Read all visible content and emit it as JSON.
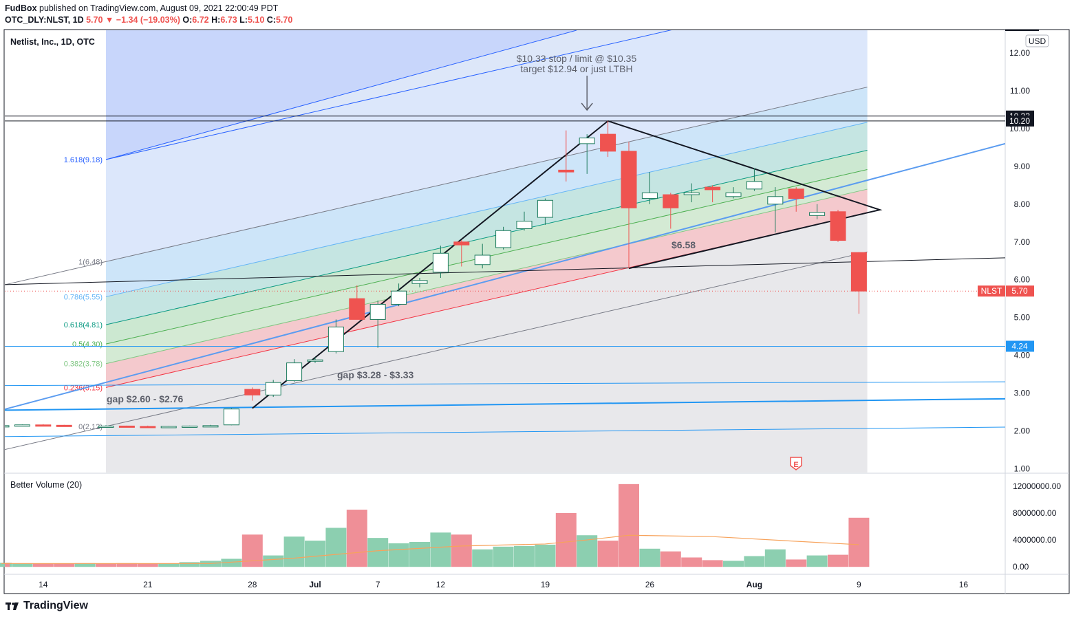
{
  "header": {
    "user": "FudBox",
    "published": " published on TradingView.com, August 09, 2021 22:00:49 PDT",
    "symbol": "OTC_DLY:NLST, 1D",
    "last": "5.70",
    "arrow": "▼",
    "change": "−1.34 (−19.03%)",
    "o_label": "O:",
    "o_value": "6.72",
    "h_label": "H:",
    "h_value": "6.73",
    "l_label": "L:",
    "l_value": "5.10",
    "c_label": "C:",
    "c_value": "5.70"
  },
  "footer": {
    "brand": "TradingView"
  },
  "colors": {
    "up": "#ffffff",
    "up_border": "#1b7a5c",
    "down": "#ef5350",
    "vol_up": "#8ccfb0",
    "vol_down": "#ef8f97",
    "blue": "#2196f3"
  },
  "chart_data": [
    {
      "type": "candlestick",
      "title": "Netlist, Inc., 1D, OTC",
      "currency": "USD",
      "ylim": [
        0.9,
        12.6
      ],
      "y_ticks": [
        1,
        2,
        3,
        4,
        5,
        6,
        7,
        8,
        9,
        10,
        11,
        12
      ],
      "x_labels": [
        {
          "label": "14",
          "x": -3
        },
        {
          "label": "21",
          "x": 2
        },
        {
          "label": "28",
          "x": 7
        },
        {
          "label": "Jul",
          "x": 10
        },
        {
          "label": "7",
          "x": 13
        },
        {
          "label": "12",
          "x": 16
        },
        {
          "label": "19",
          "x": 21
        },
        {
          "label": "26",
          "x": 26
        },
        {
          "label": "Aug",
          "x": 31
        },
        {
          "label": "9",
          "x": 36
        },
        {
          "label": "16",
          "x": 41
        }
      ],
      "candles": [
        {
          "x": -5,
          "o": 2.13,
          "h": 2.15,
          "l": 2.1,
          "c": 2.14
        },
        {
          "x": -4,
          "o": 2.14,
          "h": 2.17,
          "l": 2.12,
          "c": 2.16
        },
        {
          "x": -3,
          "o": 2.16,
          "h": 2.18,
          "l": 2.13,
          "c": 2.15
        },
        {
          "x": -2,
          "o": 2.15,
          "h": 2.16,
          "l": 2.11,
          "c": 2.12
        },
        {
          "x": 0,
          "o": 2.12,
          "h": 2.15,
          "l": 2.09,
          "c": 2.13
        },
        {
          "x": 1,
          "o": 2.13,
          "h": 2.14,
          "l": 2.1,
          "c": 2.11
        },
        {
          "x": 2,
          "o": 2.12,
          "h": 2.14,
          "l": 2.09,
          "c": 2.1
        },
        {
          "x": 3,
          "o": 2.1,
          "h": 2.13,
          "l": 2.08,
          "c": 2.12
        },
        {
          "x": 4,
          "o": 2.12,
          "h": 2.14,
          "l": 2.1,
          "c": 2.13
        },
        {
          "x": 5,
          "o": 2.13,
          "h": 2.16,
          "l": 2.11,
          "c": 2.14
        },
        {
          "x": 6,
          "o": 2.16,
          "h": 2.6,
          "l": 2.15,
          "c": 2.58
        },
        {
          "x": 7,
          "o": 3.1,
          "h": 3.15,
          "l": 2.8,
          "c": 2.95
        },
        {
          "x": 8,
          "o": 2.95,
          "h": 3.35,
          "l": 2.9,
          "c": 3.28
        },
        {
          "x": 9,
          "o": 3.33,
          "h": 3.9,
          "l": 3.3,
          "c": 3.8
        },
        {
          "x": 10,
          "o": 3.85,
          "h": 3.95,
          "l": 3.8,
          "c": 3.88
        },
        {
          "x": 11,
          "o": 4.1,
          "h": 4.95,
          "l": 4.05,
          "c": 4.75
        },
        {
          "x": 12,
          "o": 5.5,
          "h": 5.85,
          "l": 4.95,
          "c": 4.95
        },
        {
          "x": 13,
          "o": 4.95,
          "h": 5.45,
          "l": 4.2,
          "c": 5.35
        },
        {
          "x": 14,
          "o": 5.35,
          "h": 5.9,
          "l": 5.3,
          "c": 5.7
        },
        {
          "x": 15,
          "o": 5.9,
          "h": 6.05,
          "l": 5.8,
          "c": 5.98
        },
        {
          "x": 16,
          "o": 6.2,
          "h": 6.9,
          "l": 6.05,
          "c": 6.7
        },
        {
          "x": 17,
          "o": 7.0,
          "h": 7.05,
          "l": 6.35,
          "c": 6.92
        },
        {
          "x": 18,
          "o": 6.4,
          "h": 6.95,
          "l": 6.3,
          "c": 6.65
        },
        {
          "x": 19,
          "o": 6.85,
          "h": 7.4,
          "l": 6.8,
          "c": 7.3
        },
        {
          "x": 20,
          "o": 7.35,
          "h": 7.8,
          "l": 7.3,
          "c": 7.55
        },
        {
          "x": 21,
          "o": 7.65,
          "h": 8.15,
          "l": 7.45,
          "c": 8.1
        },
        {
          "x": 22,
          "o": 8.9,
          "h": 9.95,
          "l": 8.6,
          "c": 8.85
        },
        {
          "x": 23,
          "o": 9.6,
          "h": 9.85,
          "l": 8.8,
          "c": 9.75
        },
        {
          "x": 24,
          "o": 9.85,
          "h": 10.2,
          "l": 9.25,
          "c": 9.4
        },
        {
          "x": 25,
          "o": 9.4,
          "h": 9.65,
          "l": 6.3,
          "c": 7.9
        },
        {
          "x": 26,
          "o": 8.15,
          "h": 8.85,
          "l": 8.0,
          "c": 8.3
        },
        {
          "x": 27,
          "o": 8.25,
          "h": 8.3,
          "l": 7.35,
          "c": 7.9
        },
        {
          "x": 28,
          "o": 8.25,
          "h": 8.55,
          "l": 8.05,
          "c": 8.3
        },
        {
          "x": 29,
          "o": 8.45,
          "h": 8.5,
          "l": 8.05,
          "c": 8.38
        },
        {
          "x": 30,
          "o": 8.2,
          "h": 8.45,
          "l": 8.15,
          "c": 8.3
        },
        {
          "x": 31,
          "o": 8.4,
          "h": 8.95,
          "l": 8.35,
          "c": 8.6
        },
        {
          "x": 32,
          "o": 8.0,
          "h": 8.45,
          "l": 7.25,
          "c": 8.2
        },
        {
          "x": 33,
          "o": 8.4,
          "h": 8.45,
          "l": 7.8,
          "c": 8.15
        },
        {
          "x": 34,
          "o": 7.7,
          "h": 8.0,
          "l": 7.6,
          "c": 7.78
        },
        {
          "x": 35,
          "o": 7.8,
          "h": 7.85,
          "l": 7.0,
          "c": 7.04
        },
        {
          "x": 36,
          "o": 6.72,
          "h": 6.73,
          "l": 5.1,
          "c": 5.7
        }
      ],
      "fib_levels": [
        {
          "label": "0(2.12)",
          "value": 2.12,
          "color": "#787b86"
        },
        {
          "label": "0.236(3.15)",
          "value": 3.15,
          "color": "#f23645"
        },
        {
          "label": "0.382(3.78)",
          "value": 3.78,
          "color": "#81c784"
        },
        {
          "label": "0.5(4.30)",
          "value": 4.3,
          "color": "#4caf50"
        },
        {
          "label": "0.618(4.81)",
          "value": 4.81,
          "color": "#089981"
        },
        {
          "label": "0.786(5.55)",
          "value": 5.55,
          "color": "#64b5f6"
        },
        {
          "label": "1(6.48)",
          "value": 6.48,
          "color": "#787b86"
        },
        {
          "label": "1.618(9.18)",
          "value": 9.18,
          "color": "#2962ff"
        }
      ],
      "annotations": {
        "stop_text_1": "$10.33 stop / limit @ $10.35",
        "stop_text_2": "target $12.94 or just LTBH",
        "gap1": "gap $2.60 - $2.76",
        "gap2": "gap $3.28 - $3.33",
        "support": "$6.58",
        "earnings": "E"
      },
      "price_badges": [
        {
          "text": "10.33",
          "value": 10.33,
          "bg": "#131722"
        },
        {
          "text": "10.20",
          "value": 10.2,
          "bg": "#131722"
        },
        {
          "text": "4.24",
          "value": 4.24,
          "bg": "#2196f3"
        },
        {
          "text": "5.70",
          "value": 5.7,
          "bg": "#ef5350"
        }
      ],
      "last_symbol": "NLST"
    },
    {
      "type": "bar",
      "title": "Better Volume (20)",
      "ylim": [
        -1000000,
        13000000
      ],
      "y_tick_labels": [
        {
          "label": "12000000.00",
          "value": 12000000
        },
        {
          "label": "8000000.00",
          "value": 8000000
        },
        {
          "label": "4000000.00",
          "value": 4000000
        },
        {
          "label": "0.00",
          "value": 0
        }
      ],
      "bars": [
        {
          "x": -5,
          "v": 600000,
          "down": false
        },
        {
          "x": -4,
          "v": 500000,
          "down": false
        },
        {
          "x": -3,
          "v": 500000,
          "down": true
        },
        {
          "x": -2,
          "v": 500000,
          "down": true
        },
        {
          "x": -1,
          "v": 550000,
          "down": false
        },
        {
          "x": 0,
          "v": 500000,
          "down": true
        },
        {
          "x": 1,
          "v": 550000,
          "down": true
        },
        {
          "x": 2,
          "v": 500000,
          "down": true
        },
        {
          "x": 3,
          "v": 500000,
          "down": false
        },
        {
          "x": 4,
          "v": 700000,
          "down": false
        },
        {
          "x": 5,
          "v": 900000,
          "down": false
        },
        {
          "x": 6,
          "v": 1200000,
          "down": false
        },
        {
          "x": 7,
          "v": 4800000,
          "down": true
        },
        {
          "x": 8,
          "v": 1700000,
          "down": false
        },
        {
          "x": 9,
          "v": 4500000,
          "down": false
        },
        {
          "x": 10,
          "v": 3900000,
          "down": false
        },
        {
          "x": 11,
          "v": 5800000,
          "down": false
        },
        {
          "x": 12,
          "v": 8500000,
          "down": true
        },
        {
          "x": 13,
          "v": 4300000,
          "down": false
        },
        {
          "x": 14,
          "v": 3500000,
          "down": false
        },
        {
          "x": 15,
          "v": 3700000,
          "down": false
        },
        {
          "x": 16,
          "v": 5100000,
          "down": false
        },
        {
          "x": 17,
          "v": 4800000,
          "down": true
        },
        {
          "x": 18,
          "v": 2600000,
          "down": false
        },
        {
          "x": 19,
          "v": 3000000,
          "down": false
        },
        {
          "x": 20,
          "v": 3100000,
          "down": false
        },
        {
          "x": 21,
          "v": 3300000,
          "down": false
        },
        {
          "x": 22,
          "v": 8000000,
          "down": true
        },
        {
          "x": 23,
          "v": 4700000,
          "down": false
        },
        {
          "x": 24,
          "v": 3900000,
          "down": true
        },
        {
          "x": 25,
          "v": 12300000,
          "down": true
        },
        {
          "x": 26,
          "v": 2700000,
          "down": false
        },
        {
          "x": 27,
          "v": 2300000,
          "down": true
        },
        {
          "x": 28,
          "v": 1400000,
          "down": true
        },
        {
          "x": 29,
          "v": 1000000,
          "down": true
        },
        {
          "x": 30,
          "v": 900000,
          "down": false
        },
        {
          "x": 31,
          "v": 1600000,
          "down": false
        },
        {
          "x": 32,
          "v": 2600000,
          "down": false
        },
        {
          "x": 33,
          "v": 1100000,
          "down": true
        },
        {
          "x": 34,
          "v": 1700000,
          "down": false
        },
        {
          "x": 35,
          "v": 1800000,
          "down": true
        },
        {
          "x": 36,
          "v": 7300000,
          "down": true
        }
      ],
      "ma": [
        {
          "x": -5,
          "v": 500000
        },
        {
          "x": 5,
          "v": 500000
        },
        {
          "x": 9,
          "v": 1300000
        },
        {
          "x": 13,
          "v": 2400000
        },
        {
          "x": 17,
          "v": 3100000
        },
        {
          "x": 21,
          "v": 3400000
        },
        {
          "x": 23,
          "v": 4000000
        },
        {
          "x": 25,
          "v": 4700000
        },
        {
          "x": 29,
          "v": 4500000
        },
        {
          "x": 33,
          "v": 3800000
        },
        {
          "x": 36,
          "v": 3300000
        }
      ]
    }
  ]
}
